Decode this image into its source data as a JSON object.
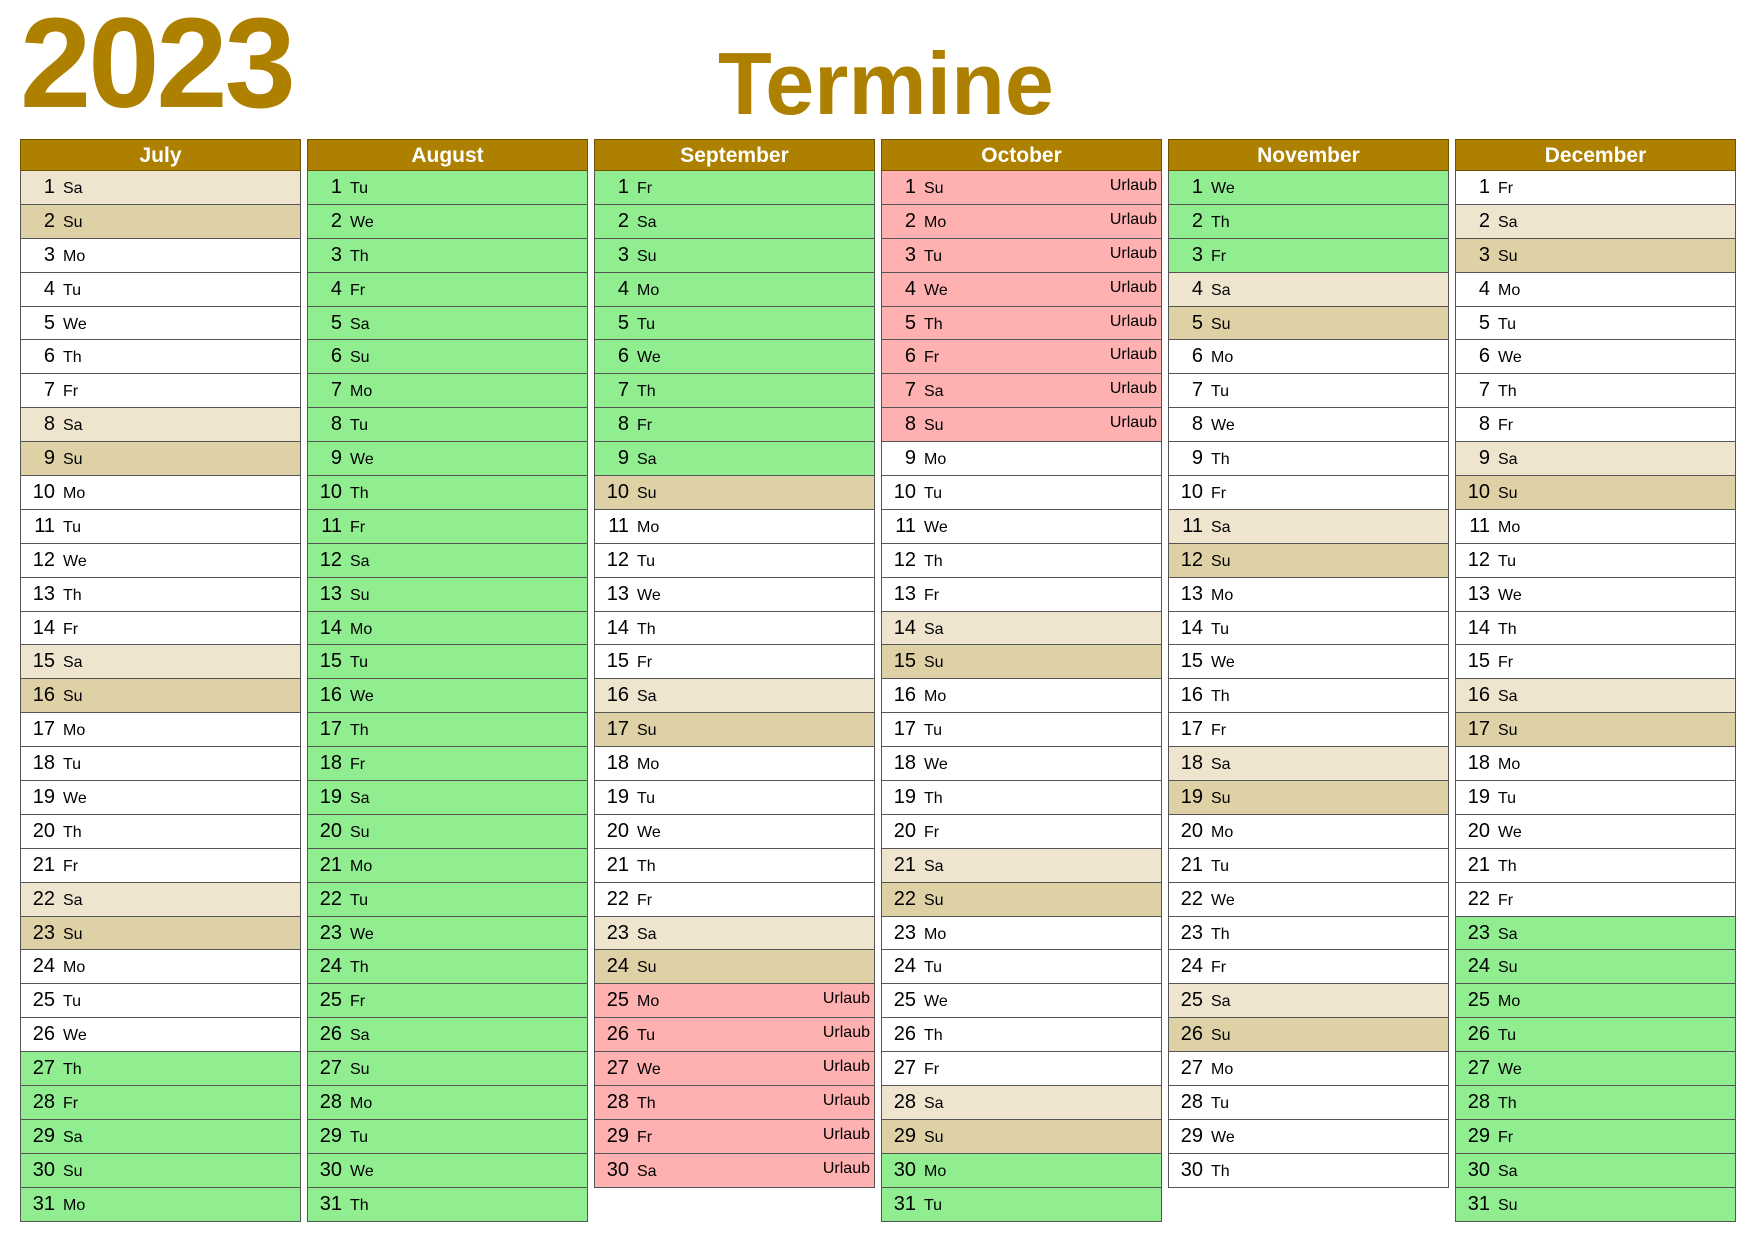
{
  "year": "2023",
  "title": "Termine",
  "colors": {
    "accent": "#ae8000",
    "saturday": "#efe5cf",
    "sunday": "#dfd1a6",
    "holiday_green": "#90ee90",
    "vacation_red": "#ffb0b0"
  },
  "vacation_label": "Urlaub",
  "months": [
    {
      "name": "July",
      "first_weekday": 5,
      "days": 31,
      "green": [
        [
          27,
          31
        ]
      ],
      "red": []
    },
    {
      "name": "August",
      "first_weekday": 1,
      "days": 31,
      "green": [
        [
          1,
          31
        ]
      ],
      "red": []
    },
    {
      "name": "September",
      "first_weekday": 4,
      "days": 30,
      "green": [
        [
          1,
          9
        ]
      ],
      "red": [
        [
          25,
          30
        ]
      ]
    },
    {
      "name": "October",
      "first_weekday": 6,
      "days": 31,
      "green": [
        [
          30,
          31
        ]
      ],
      "red": [
        [
          1,
          8
        ]
      ]
    },
    {
      "name": "November",
      "first_weekday": 2,
      "days": 30,
      "green": [
        [
          1,
          3
        ]
      ],
      "red": []
    },
    {
      "name": "December",
      "first_weekday": 4,
      "days": 31,
      "green": [
        [
          23,
          31
        ]
      ],
      "red": []
    }
  ],
  "weekday_labels": [
    "Mo",
    "Tu",
    "We",
    "Th",
    "Fr",
    "Sa",
    "Su"
  ]
}
